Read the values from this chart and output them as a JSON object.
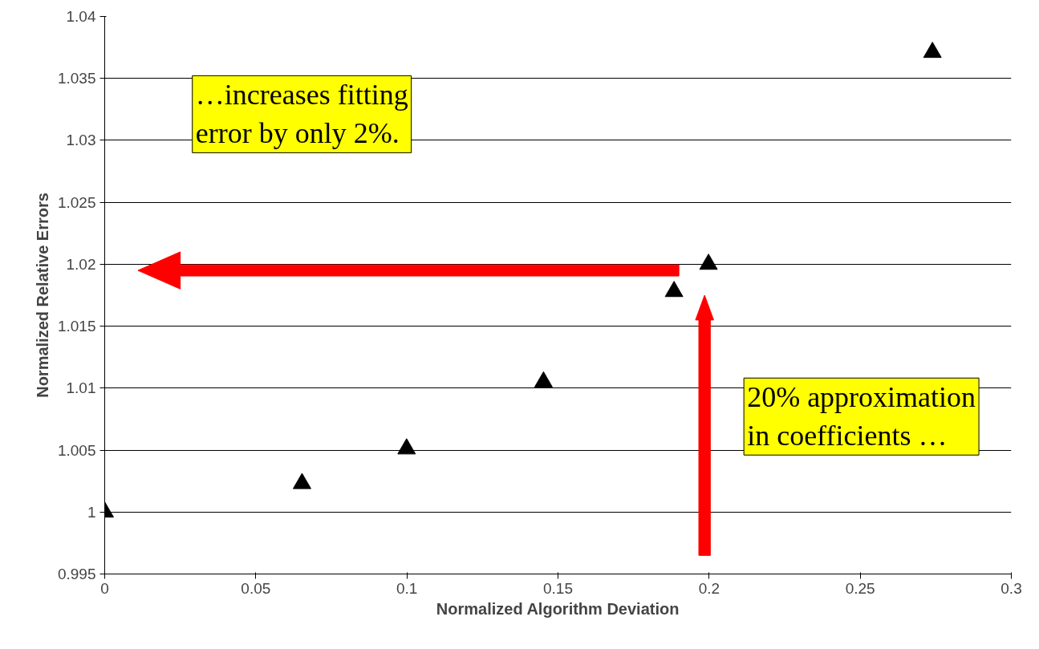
{
  "chart_data": {
    "type": "scatter",
    "xlabel": "Normalized Algorithm Deviation",
    "ylabel": "Normalized Relative Errors",
    "x": [
      0,
      0.0653,
      0.0999,
      0.1452,
      0.1884,
      0.1998,
      0.2739
    ],
    "series": [
      {
        "color": "#000000",
        "values": [
          1,
          1.0023,
          1.0051,
          1.0105,
          1.0178,
          1.02,
          1.0371
        ]
      }
    ],
    "xlim": [
      0,
      0.3
    ],
    "xticks": [
      0,
      0.05,
      0.1,
      0.15,
      0.2,
      0.25,
      0.3
    ],
    "ylim": [
      0.995,
      1.04
    ],
    "yticks": [
      0.995,
      1,
      1.005,
      1.01,
      1.015,
      1.02,
      1.025,
      1.03,
      1.035,
      1.04
    ],
    "grid": "y",
    "marker": "triangle",
    "annotations": [
      "…increases fitting\nerror by only 2%.",
      "20% approximation\nin coefficients …"
    ]
  }
}
